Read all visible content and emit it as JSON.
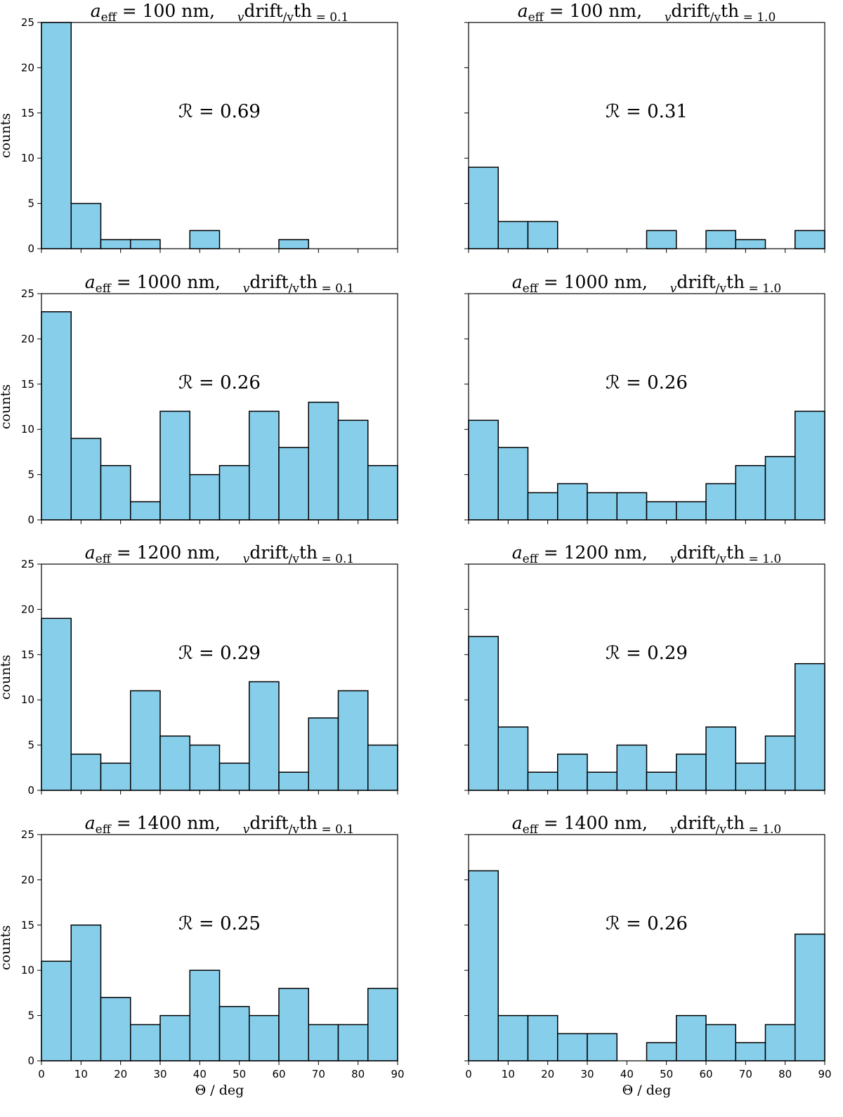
{
  "chart_data": [
    {
      "type": "histogram",
      "title": [
        "a",
        "eff",
        " = 100 nm,    ",
        "v",
        "drift",
        "/v",
        "th",
        " = 0.1"
      ],
      "annotation": "ℛ = 0.69",
      "ylabel": "counts",
      "bins": [
        0,
        7.5,
        15,
        22.5,
        30,
        37.5,
        45,
        52.5,
        60,
        67.5,
        75,
        82.5,
        90
      ],
      "values": [
        25,
        5,
        1,
        1,
        0,
        2,
        0,
        0,
        1,
        0,
        0,
        0
      ],
      "color": "#87ceeb",
      "xlim": [
        0,
        90
      ],
      "ylim": [
        0,
        25
      ],
      "xticks": [
        0,
        10,
        20,
        30,
        40,
        50,
        60,
        70,
        80,
        90
      ],
      "yticks": [
        0,
        5,
        10,
        15,
        20,
        25
      ]
    },
    {
      "type": "histogram",
      "title": [
        "a",
        "eff",
        " = 100 nm,    ",
        "v",
        "drift",
        "/v",
        "th",
        " = 1.0"
      ],
      "annotation": "ℛ = 0.31",
      "bins": [
        0,
        7.5,
        15,
        22.5,
        30,
        37.5,
        45,
        52.5,
        60,
        67.5,
        75,
        82.5,
        90
      ],
      "values": [
        9,
        3,
        3,
        0,
        0,
        0,
        2,
        0,
        2,
        1,
        0,
        2
      ],
      "color": "#87ceeb",
      "xlim": [
        0,
        90
      ],
      "ylim": [
        0,
        25
      ],
      "xticks": [
        0,
        10,
        20,
        30,
        40,
        50,
        60,
        70,
        80,
        90
      ],
      "yticks": [
        0,
        5,
        10,
        15,
        20,
        25
      ]
    },
    {
      "type": "histogram",
      "title": [
        "a",
        "eff",
        " = 1000 nm,    ",
        "v",
        "drift",
        "/v",
        "th",
        " = 0.1"
      ],
      "annotation": "ℛ = 0.26",
      "ylabel": "counts",
      "bins": [
        0,
        7.5,
        15,
        22.5,
        30,
        37.5,
        45,
        52.5,
        60,
        67.5,
        75,
        82.5,
        90
      ],
      "values": [
        23,
        9,
        6,
        2,
        12,
        5,
        6,
        12,
        8,
        13,
        11,
        6
      ],
      "color": "#87ceeb",
      "xlim": [
        0,
        90
      ],
      "ylim": [
        0,
        25
      ],
      "xticks": [
        0,
        10,
        20,
        30,
        40,
        50,
        60,
        70,
        80,
        90
      ],
      "yticks": [
        0,
        5,
        10,
        15,
        20,
        25
      ]
    },
    {
      "type": "histogram",
      "title": [
        "a",
        "eff",
        " = 1000 nm,    ",
        "v",
        "drift",
        "/v",
        "th",
        " = 1.0"
      ],
      "annotation": "ℛ = 0.26",
      "bins": [
        0,
        7.5,
        15,
        22.5,
        30,
        37.5,
        45,
        52.5,
        60,
        67.5,
        75,
        82.5,
        90
      ],
      "values": [
        11,
        8,
        3,
        4,
        3,
        3,
        2,
        2,
        4,
        6,
        7,
        12
      ],
      "color": "#87ceeb",
      "xlim": [
        0,
        90
      ],
      "ylim": [
        0,
        25
      ],
      "xticks": [
        0,
        10,
        20,
        30,
        40,
        50,
        60,
        70,
        80,
        90
      ],
      "yticks": [
        0,
        5,
        10,
        15,
        20,
        25
      ]
    },
    {
      "type": "histogram",
      "title": [
        "a",
        "eff",
        " = 1200 nm,    ",
        "v",
        "drift",
        "/v",
        "th",
        " = 0.1"
      ],
      "annotation": "ℛ = 0.29",
      "ylabel": "counts",
      "bins": [
        0,
        7.5,
        15,
        22.5,
        30,
        37.5,
        45,
        52.5,
        60,
        67.5,
        75,
        82.5,
        90
      ],
      "values": [
        19,
        4,
        3,
        11,
        6,
        5,
        3,
        12,
        2,
        8,
        11,
        5
      ],
      "color": "#87ceeb",
      "xlim": [
        0,
        90
      ],
      "ylim": [
        0,
        25
      ],
      "xticks": [
        0,
        10,
        20,
        30,
        40,
        50,
        60,
        70,
        80,
        90
      ],
      "yticks": [
        0,
        5,
        10,
        15,
        20,
        25
      ]
    },
    {
      "type": "histogram",
      "title": [
        "a",
        "eff",
        " = 1200 nm,    ",
        "v",
        "drift",
        "/v",
        "th",
        " = 1.0"
      ],
      "annotation": "ℛ = 0.29",
      "bins": [
        0,
        7.5,
        15,
        22.5,
        30,
        37.5,
        45,
        52.5,
        60,
        67.5,
        75,
        82.5,
        90
      ],
      "values": [
        17,
        7,
        2,
        4,
        2,
        5,
        2,
        4,
        7,
        3,
        6,
        14
      ],
      "color": "#87ceeb",
      "xlim": [
        0,
        90
      ],
      "ylim": [
        0,
        25
      ],
      "xticks": [
        0,
        10,
        20,
        30,
        40,
        50,
        60,
        70,
        80,
        90
      ],
      "yticks": [
        0,
        5,
        10,
        15,
        20,
        25
      ]
    },
    {
      "type": "histogram",
      "title": [
        "a",
        "eff",
        " = 1400 nm,    ",
        "v",
        "drift",
        "/v",
        "th",
        " = 0.1"
      ],
      "annotation": "ℛ = 0.25",
      "ylabel": "counts",
      "xlabel": "Θ / deg",
      "bins": [
        0,
        7.5,
        15,
        22.5,
        30,
        37.5,
        45,
        52.5,
        60,
        67.5,
        75,
        82.5,
        90
      ],
      "values": [
        11,
        15,
        7,
        4,
        5,
        10,
        6,
        5,
        8,
        4,
        4,
        8
      ],
      "color": "#87ceeb",
      "xlim": [
        0,
        90
      ],
      "ylim": [
        0,
        25
      ],
      "xticks": [
        0,
        10,
        20,
        30,
        40,
        50,
        60,
        70,
        80,
        90
      ],
      "yticks": [
        0,
        5,
        10,
        15,
        20,
        25
      ]
    },
    {
      "type": "histogram",
      "title": [
        "a",
        "eff",
        " = 1400 nm,    ",
        "v",
        "drift",
        "/v",
        "th",
        " = 1.0"
      ],
      "annotation": "ℛ = 0.26",
      "xlabel": "Θ / deg",
      "bins": [
        0,
        7.5,
        15,
        22.5,
        30,
        37.5,
        45,
        52.5,
        60,
        67.5,
        75,
        82.5,
        90
      ],
      "values": [
        21,
        5,
        5,
        3,
        3,
        0,
        2,
        5,
        4,
        2,
        4,
        14
      ],
      "color": "#87ceeb",
      "xlim": [
        0,
        90
      ],
      "ylim": [
        0,
        25
      ],
      "xticks": [
        0,
        10,
        20,
        30,
        40,
        50,
        60,
        70,
        80,
        90
      ],
      "yticks": [
        0,
        5,
        10,
        15,
        20,
        25
      ]
    }
  ]
}
